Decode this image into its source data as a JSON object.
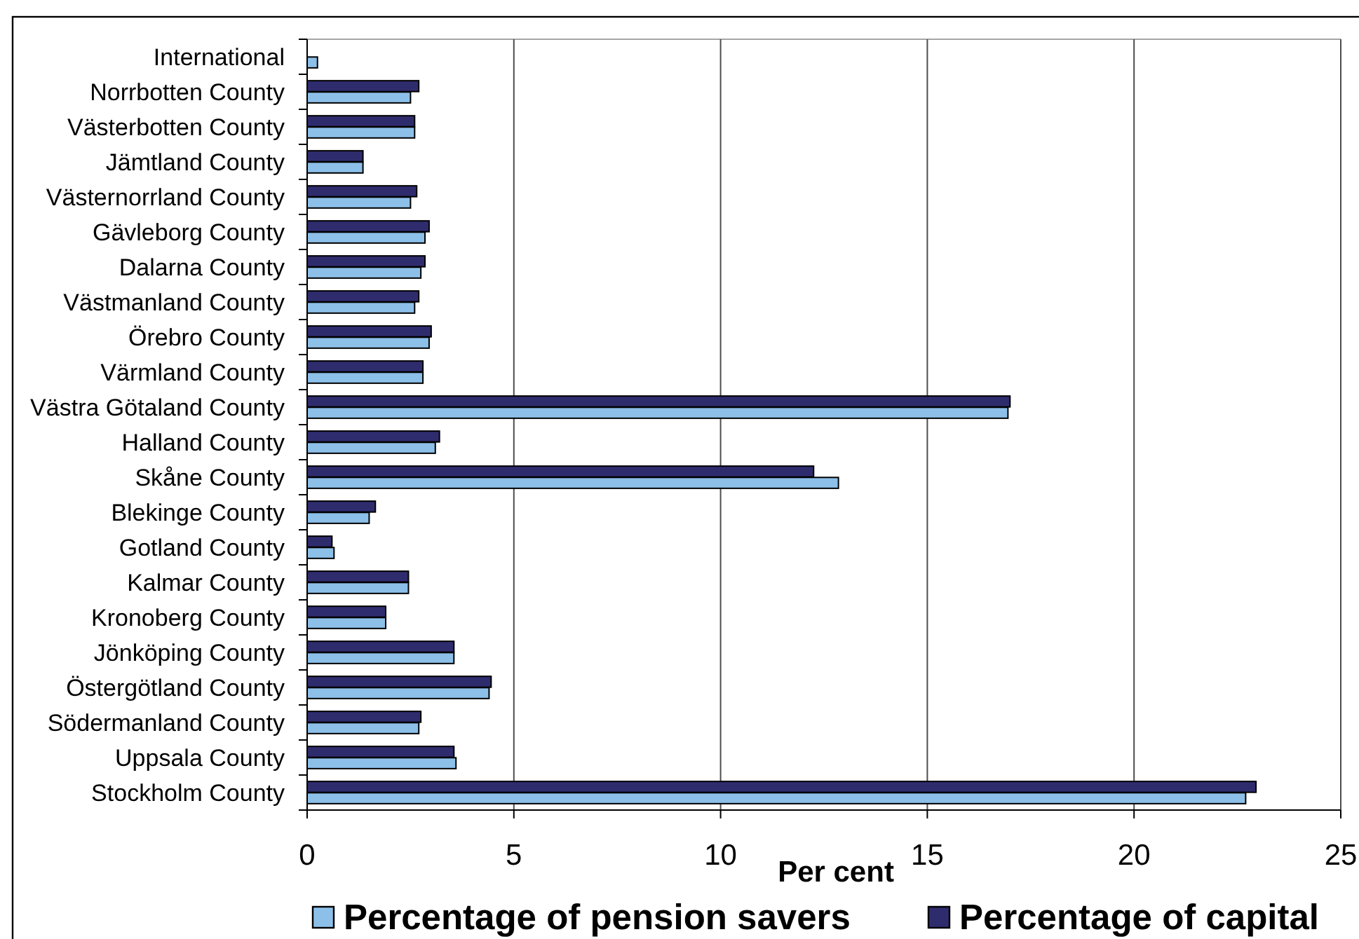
{
  "chart_data": {
    "type": "bar",
    "orientation": "horizontal",
    "xlabel": "Per cent",
    "categories": [
      "International",
      "Norrbotten County",
      "Västerbotten County",
      "Jämtland County",
      "Västernorrland County",
      "Gävleborg County",
      "Dalarna County",
      "Västmanland County",
      "Örebro County",
      "Värmland County",
      "Västra Götaland County",
      "Halland County",
      "Skåne County",
      "Blekinge County",
      "Gotland County",
      "Kalmar County",
      "Kronoberg County",
      "Jönköping County",
      "Östergötland County",
      "Södermanland County",
      "Uppsala County",
      "Stockholm County"
    ],
    "series": [
      {
        "name": "Percentage of pension savers",
        "color": "#8dc0e9",
        "values": [
          0.25,
          2.5,
          2.6,
          1.35,
          2.5,
          2.85,
          2.75,
          2.6,
          2.95,
          2.8,
          16.95,
          3.1,
          12.85,
          1.5,
          0.65,
          2.45,
          1.9,
          3.55,
          4.4,
          2.7,
          3.6,
          22.7
        ]
      },
      {
        "name": "Percentage of capital",
        "color": "#2f2c6e",
        "values": [
          null,
          2.7,
          2.6,
          1.35,
          2.65,
          2.95,
          2.85,
          2.7,
          3.0,
          2.8,
          17.0,
          3.2,
          12.25,
          1.65,
          0.6,
          2.45,
          1.9,
          3.55,
          4.45,
          2.75,
          3.55,
          22.95
        ]
      }
    ],
    "xlim": [
      0,
      25
    ],
    "xticks": [
      0,
      5,
      10,
      15,
      20,
      25
    ],
    "grid": "x",
    "legend": "bottom"
  }
}
